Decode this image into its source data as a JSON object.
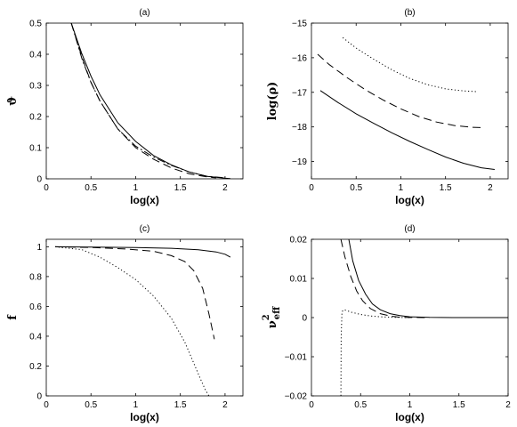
{
  "chart_data": [
    {
      "type": "line",
      "title": "(a)",
      "xlabel": "log(x)",
      "ylabel": "ϑ",
      "xlim": [
        0,
        2.2
      ],
      "ylim": [
        0,
        0.5
      ],
      "xticks": [
        "0",
        "0.5",
        "1",
        "1.5",
        "2"
      ],
      "yticks": [
        "0",
        "0.1",
        "0.2",
        "0.3",
        "0.4",
        "0.5"
      ],
      "xtick_values": [
        0,
        0.5,
        1,
        1.5,
        2
      ],
      "ytick_values": [
        0,
        0.1,
        0.2,
        0.3,
        0.4,
        0.5
      ],
      "series": [
        {
          "style": "solid",
          "x": [
            0.28,
            0.4,
            0.5,
            0.6,
            0.8,
            1.0,
            1.2,
            1.4,
            1.6,
            1.8,
            2.0,
            2.06
          ],
          "y": [
            0.5,
            0.4,
            0.33,
            0.27,
            0.18,
            0.12,
            0.075,
            0.045,
            0.022,
            0.008,
            0.002,
            0.001
          ]
        },
        {
          "style": "dashed",
          "x": [
            0.28,
            0.4,
            0.5,
            0.6,
            0.8,
            1.0,
            1.2,
            1.4,
            1.6,
            1.8,
            1.9
          ],
          "y": [
            0.5,
            0.39,
            0.31,
            0.25,
            0.16,
            0.1,
            0.063,
            0.035,
            0.016,
            0.006,
            0.003
          ]
        },
        {
          "style": "dashdot",
          "x": [
            0.28,
            0.4,
            0.5,
            0.6,
            0.8,
            1.0,
            1.2,
            1.4,
            1.6,
            1.8,
            2.0
          ],
          "y": [
            0.5,
            0.385,
            0.31,
            0.25,
            0.16,
            0.105,
            0.07,
            0.043,
            0.022,
            0.008,
            0.003
          ]
        }
      ]
    },
    {
      "type": "line",
      "title": "(b)",
      "xlabel": "log(x)",
      "ylabel": "log(ρ)",
      "xlim": [
        0,
        2.2
      ],
      "ylim": [
        -19.5,
        -15
      ],
      "xticks": [
        "0",
        "0.5",
        "1",
        "1.5",
        "2"
      ],
      "yticks": [
        "−19",
        "−18",
        "−17",
        "−16",
        "−15"
      ],
      "xtick_values": [
        0,
        0.5,
        1,
        1.5,
        2
      ],
      "ytick_values": [
        -19,
        -18,
        -17,
        -16,
        -15
      ],
      "series": [
        {
          "style": "solid",
          "x": [
            0.1,
            0.3,
            0.5,
            0.7,
            0.9,
            1.1,
            1.3,
            1.5,
            1.7,
            1.9,
            2.05
          ],
          "y": [
            -16.95,
            -17.3,
            -17.62,
            -17.9,
            -18.17,
            -18.42,
            -18.65,
            -18.87,
            -19.05,
            -19.18,
            -19.23
          ]
        },
        {
          "style": "dashed",
          "x": [
            0.07,
            0.2,
            0.4,
            0.6,
            0.8,
            1.0,
            1.2,
            1.4,
            1.6,
            1.8,
            1.9
          ],
          "y": [
            -15.9,
            -16.2,
            -16.58,
            -16.92,
            -17.22,
            -17.48,
            -17.7,
            -17.86,
            -17.96,
            -18.01,
            -18.02
          ]
        },
        {
          "style": "dotted",
          "x": [
            0.35,
            0.5,
            0.7,
            0.9,
            1.1,
            1.3,
            1.5,
            1.7,
            1.85
          ],
          "y": [
            -15.42,
            -15.72,
            -16.05,
            -16.35,
            -16.6,
            -16.78,
            -16.9,
            -16.96,
            -16.98
          ]
        }
      ]
    },
    {
      "type": "line",
      "title": "(c)",
      "xlabel": "log(x)",
      "ylabel": "f",
      "xlim": [
        0,
        2.2
      ],
      "ylim": [
        0,
        1.05
      ],
      "xticks": [
        "0",
        "0.5",
        "1",
        "1.5",
        "2"
      ],
      "yticks": [
        "0",
        "0.2",
        "0.4",
        "0.6",
        "0.8",
        "1"
      ],
      "xtick_values": [
        0,
        0.5,
        1,
        1.5,
        2
      ],
      "ytick_values": [
        0,
        0.2,
        0.4,
        0.6,
        0.8,
        1
      ],
      "series": [
        {
          "style": "solid",
          "x": [
            0.1,
            0.5,
            1.0,
            1.4,
            1.7,
            1.9,
            2.0,
            2.06
          ],
          "y": [
            1.0,
            0.998,
            0.995,
            0.99,
            0.98,
            0.965,
            0.95,
            0.93
          ]
        },
        {
          "style": "dashed",
          "x": [
            0.1,
            0.5,
            0.9,
            1.2,
            1.4,
            1.55,
            1.65,
            1.75,
            1.82,
            1.88
          ],
          "y": [
            1.0,
            0.995,
            0.985,
            0.97,
            0.94,
            0.9,
            0.84,
            0.72,
            0.55,
            0.38
          ]
        },
        {
          "style": "dotted",
          "x": [
            0.1,
            0.4,
            0.6,
            0.8,
            1.0,
            1.2,
            1.4,
            1.55,
            1.65,
            1.72,
            1.78,
            1.82
          ],
          "y": [
            1.0,
            0.98,
            0.93,
            0.86,
            0.78,
            0.67,
            0.52,
            0.36,
            0.22,
            0.12,
            0.04,
            0.0
          ]
        }
      ]
    },
    {
      "type": "line",
      "title": "(d)",
      "xlabel": "log(x)",
      "ylabel": "ν²eff",
      "xlim": [
        0,
        2
      ],
      "ylim": [
        -0.02,
        0.02
      ],
      "xticks": [
        "0",
        "0.5",
        "1",
        "1.5",
        "2"
      ],
      "yticks": [
        "−0.02",
        "−0.01",
        "0",
        "0.01",
        "0.02"
      ],
      "xtick_values": [
        0,
        0.5,
        1,
        1.5,
        2
      ],
      "ytick_values": [
        -0.02,
        -0.01,
        0,
        0.01,
        0.02
      ],
      "series": [
        {
          "style": "solid",
          "x": [
            0.38,
            0.42,
            0.48,
            0.55,
            0.62,
            0.7,
            0.8,
            0.9,
            1.0,
            1.2,
            1.5,
            2.0
          ],
          "y": [
            0.02,
            0.0145,
            0.0095,
            0.006,
            0.0035,
            0.002,
            0.001,
            0.0005,
            0.0002,
            5e-05,
            0.0,
            0.0
          ]
        },
        {
          "style": "dashed",
          "x": [
            0.3,
            0.34,
            0.4,
            0.46,
            0.52,
            0.6,
            0.7,
            0.8,
            0.9,
            1.0,
            1.2
          ],
          "y": [
            0.02,
            0.0155,
            0.0105,
            0.0068,
            0.0043,
            0.0023,
            0.001,
            0.0004,
            0.0001,
            3e-05,
            0.0
          ]
        },
        {
          "style": "dotted",
          "x": [
            0.3,
            0.302,
            0.31,
            0.33,
            0.36,
            0.4,
            0.5,
            0.6,
            0.7,
            0.8,
            1.0
          ],
          "y": [
            -0.02,
            -0.005,
            0.0015,
            0.002,
            0.0018,
            0.0014,
            0.0008,
            0.0004,
            0.0002,
            0.0001,
            0.0
          ]
        }
      ]
    }
  ]
}
